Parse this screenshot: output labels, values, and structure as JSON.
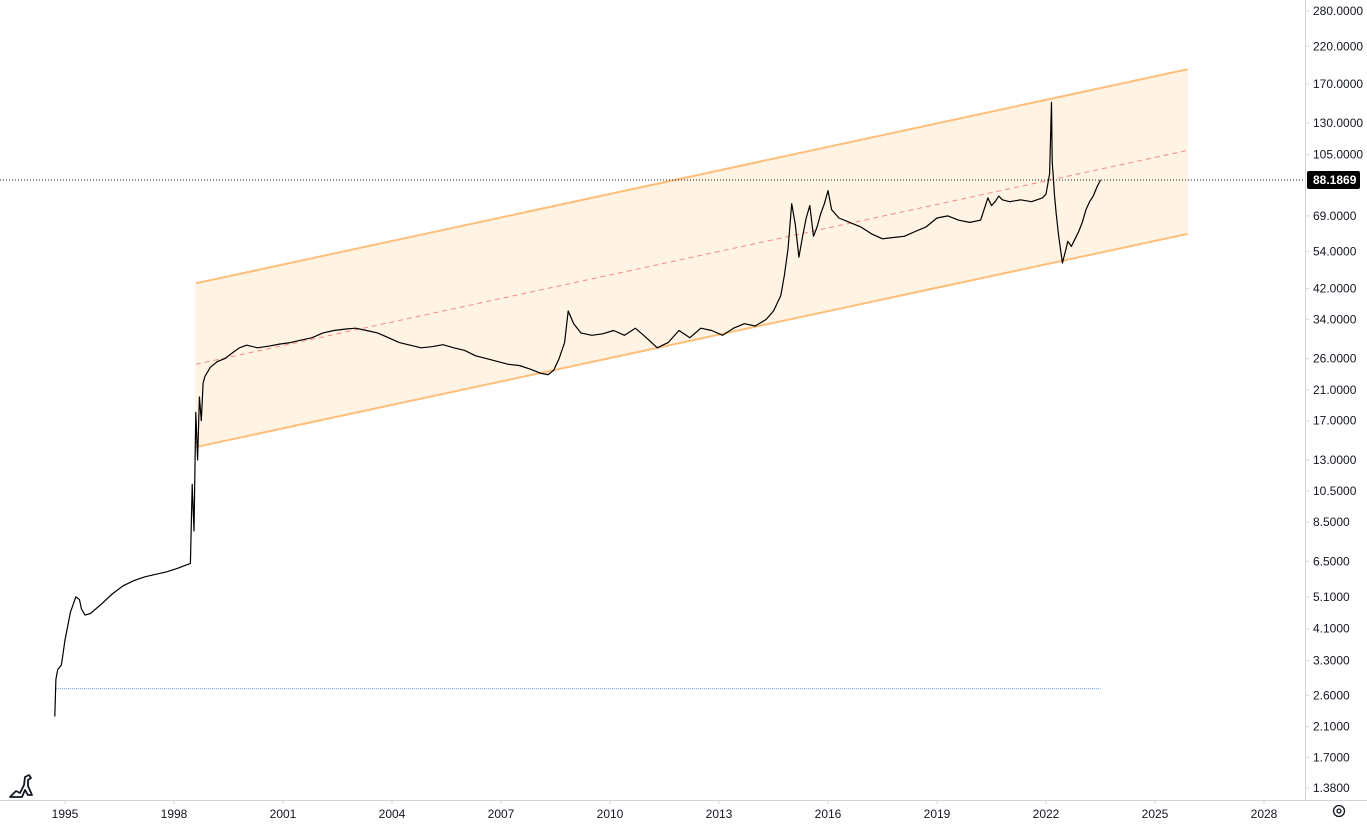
{
  "chart_data": {
    "type": "line",
    "title": "",
    "xlabel": "",
    "ylabel": "",
    "yscale": "log",
    "x_ticks": [
      "1995",
      "1998",
      "2001",
      "2004",
      "2007",
      "2010",
      "2013",
      "2016",
      "2019",
      "2022",
      "2025",
      "2028"
    ],
    "y_ticks": [
      "280.0000",
      "220.0000",
      "170.0000",
      "130.0000",
      "105.0000",
      "69.0000",
      "54.0000",
      "42.0000",
      "34.0000",
      "26.0000",
      "21.0000",
      "17.0000",
      "13.0000",
      "10.5000",
      "8.5000",
      "6.5000",
      "5.1000",
      "4.1000",
      "3.3000",
      "2.6000",
      "2.1000",
      "1.7000",
      "1.3800"
    ],
    "ylim": [
      1.2,
      300
    ],
    "xlim": [
      1994.4,
      2030.1
    ],
    "last_price": "88.1869",
    "last_price_value": 88.1869,
    "series": [
      {
        "x": [
          1994.72,
          1994.75,
          1994.8,
          1994.9,
          1995.0,
          1995.15,
          1995.3,
          1995.4,
          1995.45,
          1995.55,
          1995.7,
          1996.0,
          1996.3,
          1996.6,
          1996.9,
          1997.2,
          1997.5,
          1997.8,
          1998.1,
          1998.35,
          1998.45,
          1998.5,
          1998.55,
          1998.6,
          1998.65,
          1998.7,
          1998.75,
          1998.8,
          1998.85,
          1998.9,
          1999.0,
          1999.1,
          1999.2,
          1999.4,
          1999.6,
          1999.8,
          2000.0,
          2000.3,
          2000.6,
          2000.9,
          2001.2,
          2001.5,
          2001.8,
          2002.1,
          2002.4,
          2002.7,
          2003.0,
          2003.3,
          2003.6,
          2003.9,
          2004.2,
          2004.5,
          2004.8,
          2005.1,
          2005.4,
          2005.7,
          2006.0,
          2006.3,
          2006.6,
          2006.9,
          2007.2,
          2007.5,
          2007.8,
          2008.1,
          2008.3,
          2008.45,
          2008.6,
          2008.75,
          2008.85,
          2009.0,
          2009.2,
          2009.5,
          2009.8,
          2010.1,
          2010.4,
          2010.7,
          2011.0,
          2011.3,
          2011.6,
          2011.9,
          2012.2,
          2012.5,
          2012.8,
          2013.1,
          2013.4,
          2013.7,
          2014.0,
          2014.3,
          2014.5,
          2014.7,
          2014.8,
          2014.9,
          2015.0,
          2015.1,
          2015.2,
          2015.3,
          2015.4,
          2015.5,
          2015.6,
          2015.7,
          2015.8,
          2015.9,
          2016.0,
          2016.1,
          2016.3,
          2016.6,
          2016.9,
          2017.2,
          2017.5,
          2017.8,
          2018.1,
          2018.4,
          2018.7,
          2019.0,
          2019.3,
          2019.6,
          2019.9,
          2020.2,
          2020.4,
          2020.5,
          2020.6,
          2020.7,
          2020.8,
          2021.0,
          2021.3,
          2021.6,
          2021.9,
          2022.0,
          2022.1,
          2022.15,
          2022.17,
          2022.2,
          2022.23,
          2022.28,
          2022.35,
          2022.45,
          2022.55,
          2022.6,
          2022.7,
          2022.8,
          2022.9,
          2023.0,
          2023.1,
          2023.2,
          2023.3,
          2023.4,
          2023.5
        ],
        "values": [
          2.25,
          2.9,
          3.1,
          3.2,
          3.8,
          4.6,
          5.1,
          5.0,
          4.7,
          4.5,
          4.55,
          4.85,
          5.2,
          5.5,
          5.7,
          5.85,
          5.95,
          6.05,
          6.2,
          6.35,
          6.4,
          11.0,
          8.0,
          18.0,
          13.0,
          20.0,
          17.0,
          22.0,
          23.0,
          23.5,
          24.5,
          25.0,
          25.5,
          26.0,
          27.0,
          28.0,
          28.5,
          28.0,
          28.3,
          28.7,
          29.0,
          29.5,
          30.0,
          31.0,
          31.5,
          31.8,
          32.0,
          31.5,
          31.0,
          30.0,
          29.0,
          28.5,
          28.0,
          28.2,
          28.6,
          28.0,
          27.5,
          26.5,
          26.0,
          25.5,
          25.0,
          24.8,
          24.2,
          23.5,
          23.3,
          24.0,
          26.0,
          29.0,
          36.0,
          33.0,
          31.0,
          30.5,
          30.8,
          31.5,
          30.5,
          32.0,
          30.0,
          28.0,
          29.0,
          31.5,
          30.0,
          32.0,
          31.5,
          30.5,
          32.0,
          33.0,
          32.5,
          34.0,
          36.0,
          40.0,
          46.0,
          55.0,
          75.0,
          65.0,
          52.0,
          60.0,
          68.0,
          74.0,
          60.0,
          64.0,
          70.0,
          75.0,
          82.0,
          72.0,
          68.0,
          66.0,
          64.0,
          61.0,
          59.0,
          59.5,
          60.0,
          62.0,
          64.0,
          68.0,
          69.0,
          67.0,
          66.0,
          67.0,
          78.0,
          74.0,
          76.0,
          79.0,
          77.0,
          76.0,
          77.0,
          76.0,
          78.0,
          80.0,
          92.0,
          150.0,
          100.0,
          90.0,
          80.0,
          70.0,
          60.0,
          50.0,
          55.0,
          58.0,
          56.0,
          59.0,
          62.0,
          66.0,
          72.0,
          76.0,
          79.0,
          84.0,
          88.1869
        ]
      }
    ],
    "channel": {
      "x_start": 1998.6,
      "x_end": 2025.9,
      "upper": [
        43.5,
        188.0
      ],
      "mid": [
        25.0,
        108.0
      ],
      "lower": [
        14.2,
        61.0
      ]
    },
    "baseline": {
      "value": 2.72,
      "x_start": 1994.75,
      "x_end": 2023.5
    },
    "grid": false,
    "legend": "none",
    "colors": {
      "price_line": "#000000",
      "channel_fill": "#fff2e0",
      "channel_edge": "#ffbe7a",
      "mid_line": "#f28b82",
      "baseline": "#5b9bd5",
      "axis_text": "#131722",
      "price_tag_bg": "#000000"
    }
  },
  "ui": {
    "settings_icon": "gear-icon",
    "logo_icon": "dinosaur-logo-icon"
  }
}
